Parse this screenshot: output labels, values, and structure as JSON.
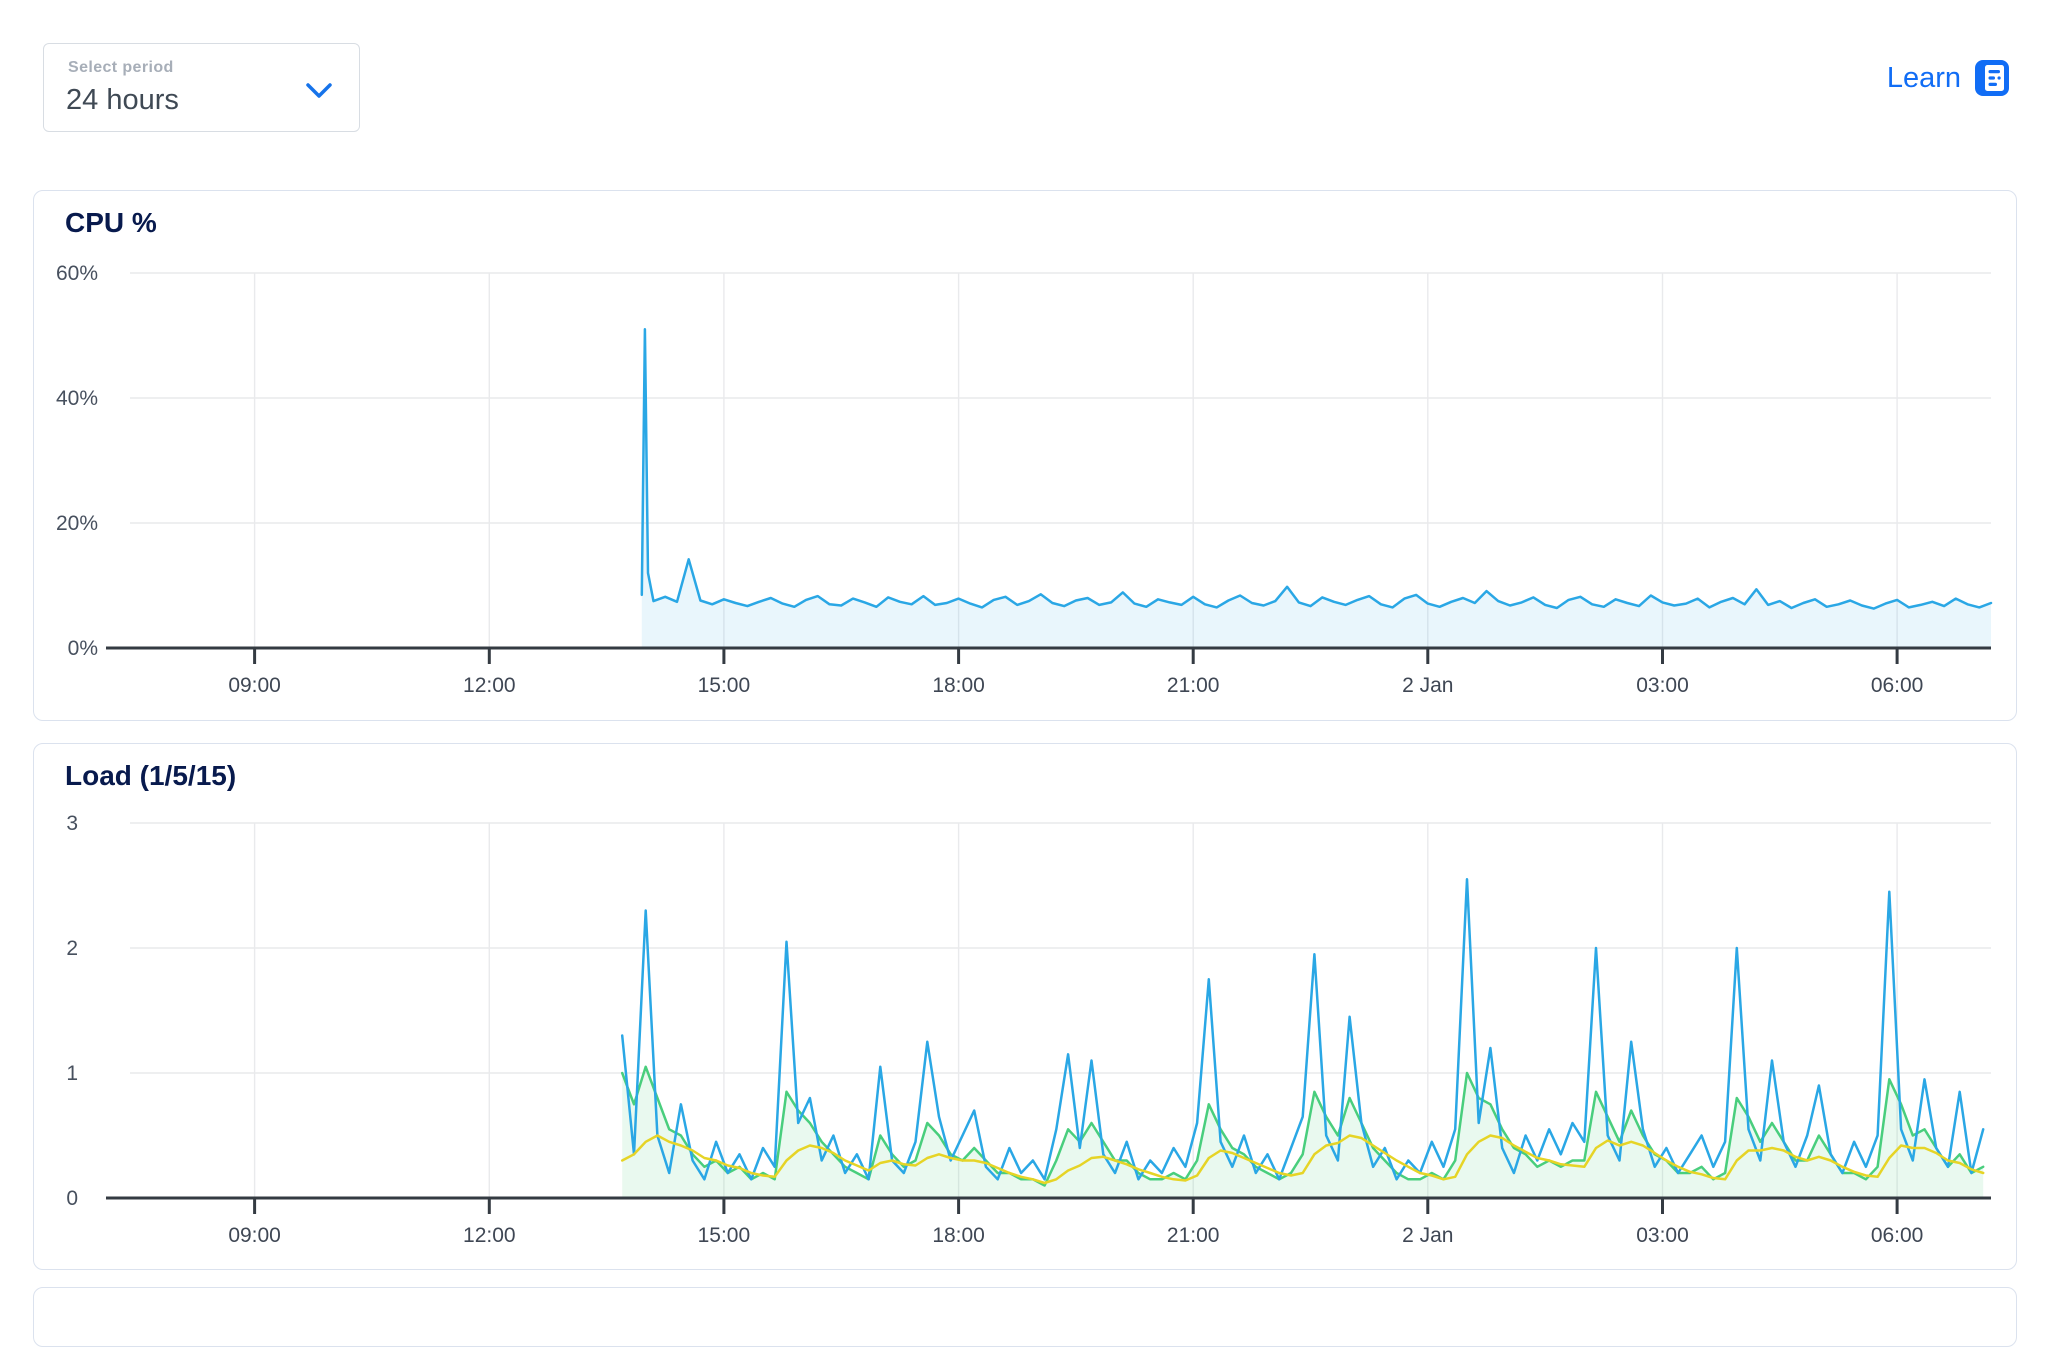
{
  "period_selector": {
    "label": "Select period",
    "value": "24 hours"
  },
  "learn": {
    "label": "Learn"
  },
  "colors": {
    "accent_blue": "#116df5",
    "chart_blue": "#2aa7e5",
    "chart_green": "#49ce7d",
    "chart_yellow": "#e6d426",
    "axis": "#343b42",
    "grid": "#e9eaec",
    "title_navy": "#081a4d",
    "panel_border": "#dbe2ee"
  },
  "chart_data": [
    {
      "type": "area",
      "title": "CPU %",
      "xlim": [
        7.1,
        31.2
      ],
      "ylim": [
        0,
        60
      ],
      "x_ticks": [
        {
          "value": 9,
          "label": "09:00"
        },
        {
          "value": 12,
          "label": "12:00"
        },
        {
          "value": 15,
          "label": "15:00"
        },
        {
          "value": 18,
          "label": "18:00"
        },
        {
          "value": 21,
          "label": "21:00"
        },
        {
          "value": 24,
          "label": "2 Jan"
        },
        {
          "value": 27,
          "label": "03:00"
        },
        {
          "value": 30,
          "label": "06:00"
        }
      ],
      "y_ticks": [
        {
          "value": 60,
          "label": "60%"
        },
        {
          "value": 40,
          "label": "40%"
        },
        {
          "value": 20,
          "label": "20%"
        },
        {
          "value": 0,
          "label": "0%"
        }
      ],
      "grid": true,
      "legend": "none",
      "series": [
        {
          "name": "cpu-percent",
          "color": "#2aa7e5",
          "fill": "rgba(42,167,229,0.10)",
          "segments": [
            {
              "t0": 13.95,
              "dt": 0.04,
              "values": [
                8.5,
                51,
                12
              ]
            },
            {
              "t0": 14.1,
              "dt": 0.15,
              "values": [
                7.5,
                8.2,
                7.4,
                14.2,
                7.6,
                7.0,
                7.8,
                7.2,
                6.7,
                7.4,
                8.0,
                7.1,
                6.6,
                7.7,
                8.3,
                7.0,
                6.8,
                7.9,
                7.3,
                6.6,
                8.1,
                7.4,
                7.0,
                8.3,
                6.9,
                7.2,
                7.9,
                7.1,
                6.5,
                7.7,
                8.2,
                6.9,
                7.5,
                8.6,
                7.2,
                6.7,
                7.6,
                8.0,
                6.9,
                7.3,
                8.9,
                7.1,
                6.6,
                7.8,
                7.3,
                6.9,
                8.2,
                7.0,
                6.5,
                7.6,
                8.4,
                7.2,
                6.8,
                7.5,
                9.8,
                7.3,
                6.7,
                8.1,
                7.4,
                6.9,
                7.7,
                8.3,
                7.0,
                6.5,
                7.9,
                8.5,
                7.1,
                6.6,
                7.4,
                8.0,
                7.2,
                9.1,
                7.5,
                6.8,
                7.3,
                8.1,
                6.9,
                6.4,
                7.7,
                8.2,
                7.0,
                6.6,
                7.8,
                7.2,
                6.7,
                8.4,
                7.3,
                6.8,
                7.1,
                7.9,
                6.5,
                7.4,
                8.0,
                7.0,
                9.4,
                6.9,
                7.5,
                6.4,
                7.2,
                7.8,
                6.6,
                7.0,
                7.6,
                6.8,
                6.3,
                7.1,
                7.7,
                6.5,
                6.9,
                7.4,
                6.7,
                7.9,
                7.0,
                6.5,
                7.2
              ]
            }
          ]
        }
      ]
    },
    {
      "type": "line",
      "title": "Load (1/5/15)",
      "xlim": [
        7.1,
        31.2
      ],
      "ylim": [
        0,
        3
      ],
      "x_ticks": [
        {
          "value": 9,
          "label": "09:00"
        },
        {
          "value": 12,
          "label": "12:00"
        },
        {
          "value": 15,
          "label": "15:00"
        },
        {
          "value": 18,
          "label": "18:00"
        },
        {
          "value": 21,
          "label": "21:00"
        },
        {
          "value": 24,
          "label": "2 Jan"
        },
        {
          "value": 27,
          "label": "03:00"
        },
        {
          "value": 30,
          "label": "06:00"
        }
      ],
      "y_ticks": [
        {
          "value": 3,
          "label": "3"
        },
        {
          "value": 2,
          "label": "2"
        },
        {
          "value": 1,
          "label": "1"
        },
        {
          "value": 0,
          "label": "0"
        }
      ],
      "grid": true,
      "legend": "none",
      "series": [
        {
          "name": "load-5min",
          "color": "#49ce7d",
          "fill": "rgba(73,206,125,0.12)",
          "segments": [
            {
              "t0": 13.7,
              "dt": 0.15,
              "values": [
                1.0,
                0.75,
                1.05,
                0.8,
                0.55,
                0.5,
                0.35,
                0.25,
                0.3,
                0.2,
                0.25,
                0.15,
                0.2,
                0.15,
                0.85,
                0.7,
                0.6,
                0.45,
                0.35,
                0.25,
                0.2,
                0.15,
                0.5,
                0.35,
                0.25,
                0.3,
                0.6,
                0.5,
                0.35,
                0.3,
                0.4,
                0.3,
                0.2,
                0.2,
                0.15,
                0.15,
                0.1,
                0.3,
                0.55,
                0.45,
                0.6,
                0.45,
                0.3,
                0.3,
                0.2,
                0.15,
                0.15,
                0.2,
                0.15,
                0.3,
                0.75,
                0.55,
                0.4,
                0.35,
                0.25,
                0.2,
                0.15,
                0.2,
                0.35,
                0.85,
                0.65,
                0.5,
                0.8,
                0.6,
                0.4,
                0.3,
                0.2,
                0.15,
                0.15,
                0.2,
                0.15,
                0.3,
                1.0,
                0.8,
                0.75,
                0.55,
                0.4,
                0.35,
                0.25,
                0.3,
                0.25,
                0.3,
                0.3,
                0.85,
                0.65,
                0.45,
                0.7,
                0.5,
                0.35,
                0.3,
                0.2,
                0.2,
                0.25,
                0.15,
                0.2,
                0.8,
                0.65,
                0.45,
                0.6,
                0.45,
                0.3,
                0.3,
                0.5,
                0.35,
                0.2,
                0.2,
                0.15,
                0.25,
                0.95,
                0.75,
                0.5,
                0.55,
                0.4,
                0.25,
                0.35,
                0.2,
                0.25
              ]
            }
          ]
        },
        {
          "name": "load-1min",
          "color": "#2aa7e5",
          "fill": null,
          "segments": [
            {
              "t0": 13.7,
              "dt": 0.15,
              "values": [
                1.3,
                0.35,
                2.3,
                0.5,
                0.2,
                0.75,
                0.3,
                0.15,
                0.45,
                0.2,
                0.35,
                0.15,
                0.4,
                0.25,
                2.05,
                0.6,
                0.8,
                0.3,
                0.5,
                0.2,
                0.35,
                0.15,
                1.05,
                0.3,
                0.2,
                0.45,
                1.25,
                0.65,
                0.3,
                0.5,
                0.7,
                0.25,
                0.15,
                0.4,
                0.2,
                0.3,
                0.15,
                0.55,
                1.15,
                0.4,
                1.1,
                0.35,
                0.2,
                0.45,
                0.15,
                0.3,
                0.2,
                0.4,
                0.25,
                0.6,
                1.75,
                0.45,
                0.25,
                0.5,
                0.2,
                0.35,
                0.15,
                0.4,
                0.65,
                1.95,
                0.5,
                0.3,
                1.45,
                0.6,
                0.25,
                0.4,
                0.15,
                0.3,
                0.2,
                0.45,
                0.25,
                0.55,
                2.55,
                0.6,
                1.2,
                0.4,
                0.2,
                0.5,
                0.3,
                0.55,
                0.35,
                0.6,
                0.45,
                2.0,
                0.5,
                0.3,
                1.25,
                0.55,
                0.25,
                0.4,
                0.2,
                0.35,
                0.5,
                0.25,
                0.45,
                2.0,
                0.55,
                0.3,
                1.1,
                0.45,
                0.25,
                0.5,
                0.9,
                0.35,
                0.2,
                0.45,
                0.25,
                0.5,
                2.45,
                0.55,
                0.3,
                0.95,
                0.4,
                0.25,
                0.85,
                0.2,
                0.55
              ]
            }
          ]
        },
        {
          "name": "load-15min",
          "color": "#e6d426",
          "fill": null,
          "segments": [
            {
              "t0": 13.7,
              "dt": 0.15,
              "values": [
                0.3,
                0.35,
                0.45,
                0.5,
                0.45,
                0.42,
                0.38,
                0.32,
                0.3,
                0.26,
                0.24,
                0.2,
                0.18,
                0.17,
                0.3,
                0.38,
                0.42,
                0.4,
                0.36,
                0.3,
                0.26,
                0.22,
                0.28,
                0.3,
                0.27,
                0.26,
                0.32,
                0.35,
                0.32,
                0.3,
                0.3,
                0.28,
                0.24,
                0.2,
                0.17,
                0.15,
                0.12,
                0.15,
                0.22,
                0.26,
                0.32,
                0.33,
                0.3,
                0.27,
                0.23,
                0.2,
                0.17,
                0.15,
                0.14,
                0.18,
                0.32,
                0.38,
                0.36,
                0.32,
                0.28,
                0.24,
                0.2,
                0.18,
                0.2,
                0.35,
                0.42,
                0.44,
                0.5,
                0.48,
                0.42,
                0.36,
                0.3,
                0.25,
                0.2,
                0.18,
                0.15,
                0.17,
                0.35,
                0.45,
                0.5,
                0.48,
                0.42,
                0.37,
                0.32,
                0.3,
                0.27,
                0.26,
                0.25,
                0.4,
                0.46,
                0.42,
                0.45,
                0.42,
                0.36,
                0.3,
                0.25,
                0.21,
                0.19,
                0.16,
                0.15,
                0.3,
                0.38,
                0.38,
                0.4,
                0.38,
                0.33,
                0.3,
                0.33,
                0.3,
                0.25,
                0.21,
                0.18,
                0.17,
                0.32,
                0.42,
                0.4,
                0.4,
                0.36,
                0.3,
                0.28,
                0.23,
                0.2
              ]
            }
          ]
        }
      ]
    }
  ]
}
